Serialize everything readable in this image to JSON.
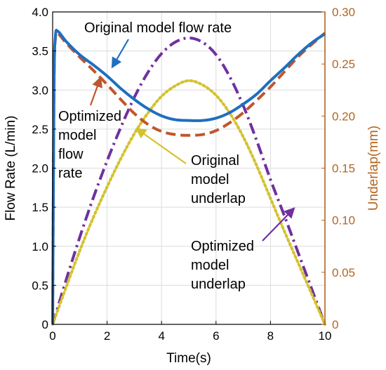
{
  "chart_data": {
    "type": "line",
    "xlabel": "Time(s)",
    "ylabel_left": "Flow Rate (L/min)",
    "ylabel_right": "Underlap(mm)",
    "xlim": [
      0,
      10
    ],
    "ylim_left": [
      0,
      4.0
    ],
    "ylim_right": [
      0,
      0.3
    ],
    "x_ticks": [
      "0",
      "2",
      "4",
      "6",
      "8",
      "10"
    ],
    "y_left_ticks": [
      "0",
      "0.5",
      "1.0",
      "1.5",
      "2.0",
      "2.5",
      "3.0",
      "3.5",
      "4.0"
    ],
    "y_right_ticks": [
      "0",
      "0.05",
      "0.10",
      "0.15",
      "0.20",
      "0.25",
      "0.30"
    ],
    "grid": true,
    "series": [
      {
        "axis": "left",
        "color": "#1f6fbf",
        "style": "solid",
        "x": [
          0,
          0.05,
          0.1,
          0.2,
          0.5,
          1,
          1.5,
          2,
          2.5,
          3,
          3.5,
          4,
          4.5,
          5,
          5.5,
          6,
          6.5,
          7,
          7.5,
          8,
          8.5,
          9,
          9.5,
          10
        ],
        "y": [
          0,
          3.0,
          3.68,
          3.75,
          3.62,
          3.45,
          3.32,
          3.18,
          3.02,
          2.88,
          2.76,
          2.67,
          2.62,
          2.61,
          2.61,
          2.64,
          2.71,
          2.82,
          2.95,
          3.12,
          3.28,
          3.45,
          3.6,
          3.72
        ]
      },
      {
        "axis": "left",
        "color": "#c0562b",
        "style": "dashed",
        "x": [
          0,
          0.05,
          0.1,
          0.2,
          0.5,
          1,
          1.5,
          2,
          2.5,
          3,
          3.5,
          4,
          4.5,
          5,
          5.5,
          6,
          6.5,
          7,
          7.5,
          8,
          8.5,
          9,
          9.5,
          10
        ],
        "y": [
          0,
          3.0,
          3.66,
          3.72,
          3.6,
          3.42,
          3.25,
          3.07,
          2.88,
          2.7,
          2.56,
          2.47,
          2.43,
          2.42,
          2.43,
          2.48,
          2.58,
          2.71,
          2.87,
          3.04,
          3.23,
          3.42,
          3.58,
          3.73
        ]
      },
      {
        "axis": "right",
        "color": "#7030a0",
        "style": "dashdot",
        "x": [
          0,
          0.5,
          1,
          1.5,
          2,
          2.5,
          3,
          3.5,
          4,
          4.5,
          5,
          5.5,
          6,
          6.5,
          7,
          7.5,
          8,
          8.5,
          9,
          9.5,
          10
        ],
        "y": [
          0,
          0.043,
          0.084,
          0.122,
          0.157,
          0.189,
          0.218,
          0.242,
          0.26,
          0.271,
          0.275,
          0.271,
          0.259,
          0.238,
          0.21,
          0.176,
          0.139,
          0.105,
          0.07,
          0.035,
          0
        ]
      },
      {
        "axis": "right",
        "color": "#d4c22e",
        "style": "dotted",
        "x": [
          0,
          0.5,
          1,
          1.5,
          2,
          2.5,
          3,
          3.5,
          4,
          4.5,
          5,
          5.5,
          6,
          6.5,
          7,
          7.5,
          8,
          8.5,
          9,
          9.5,
          10
        ],
        "y": [
          0,
          0.036,
          0.071,
          0.103,
          0.132,
          0.159,
          0.183,
          0.203,
          0.219,
          0.229,
          0.234,
          0.23,
          0.22,
          0.203,
          0.18,
          0.152,
          0.121,
          0.09,
          0.06,
          0.03,
          0
        ]
      }
    ],
    "annotations": [
      {
        "lines": [
          "Original model flow rate"
        ],
        "color": "#1f6fbf",
        "target": [
          2.2,
          3.3
        ]
      },
      {
        "lines": [
          "Optimized",
          "model",
          "flow",
          "rate"
        ],
        "color": "#c0562b",
        "target": [
          1.75,
          3.15
        ]
      },
      {
        "lines": [
          "Original",
          "model",
          "underlap"
        ],
        "color": "#d4c22e",
        "target": [
          3.1,
          2.5
        ]
      },
      {
        "lines": [
          "Optimized",
          "model",
          "underlap"
        ],
        "color": "#7030a0",
        "target": [
          8.85,
          1.48
        ]
      }
    ]
  },
  "colors": {
    "left_axis": "#000000",
    "right_axis": "#b5651d",
    "grid": "#dcdcdc"
  }
}
